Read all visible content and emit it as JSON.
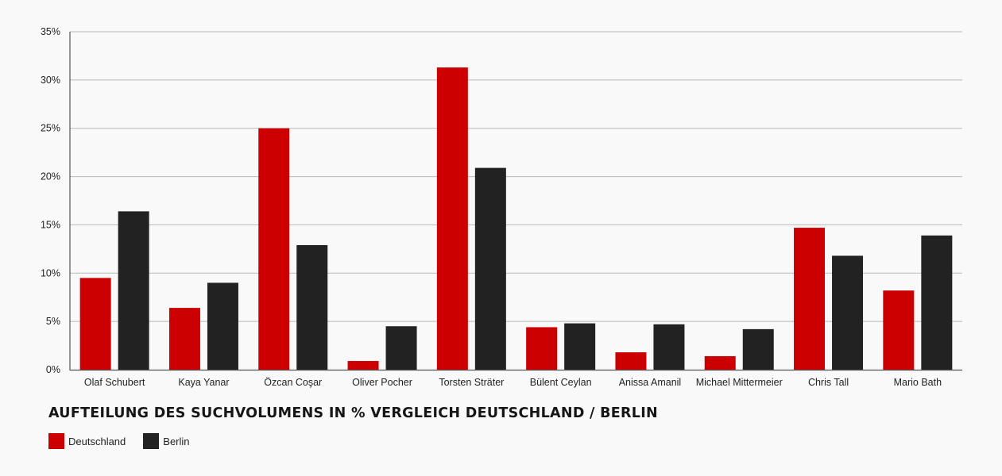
{
  "chart_data": {
    "type": "bar",
    "title": "AUFTEILUNG DES SUCHVOLUMENS IN % VERGLEICH DEUTSCHLAND / BERLIN",
    "categories": [
      "Olaf Schubert",
      "Kaya Yanar",
      "Özcan Coşar",
      "Oliver Pocher",
      "Torsten Sträter",
      "Bülent Ceylan",
      "Anissa Amanil",
      "Michael Mittermeier",
      "Chris Tall",
      "Mario Bath"
    ],
    "series": [
      {
        "name": "Deutschland",
        "color": "#cc0000",
        "values": [
          9.5,
          6.4,
          25.0,
          0.9,
          31.3,
          4.4,
          1.8,
          1.4,
          14.7,
          8.2
        ]
      },
      {
        "name": "Berlin",
        "color": "#222222",
        "values": [
          16.4,
          9.0,
          12.9,
          4.5,
          20.9,
          4.8,
          4.7,
          4.2,
          11.8,
          13.9
        ]
      }
    ],
    "ylim": [
      0,
      35
    ],
    "yticks": [
      0,
      5,
      10,
      15,
      20,
      25,
      30,
      35
    ],
    "ytick_labels": [
      "0%",
      "5%",
      "10%",
      "15%",
      "20%",
      "25%",
      "30%",
      "35%"
    ],
    "xlabel": "",
    "ylabel": "",
    "grid": true,
    "legend_position": "bottom-left"
  }
}
